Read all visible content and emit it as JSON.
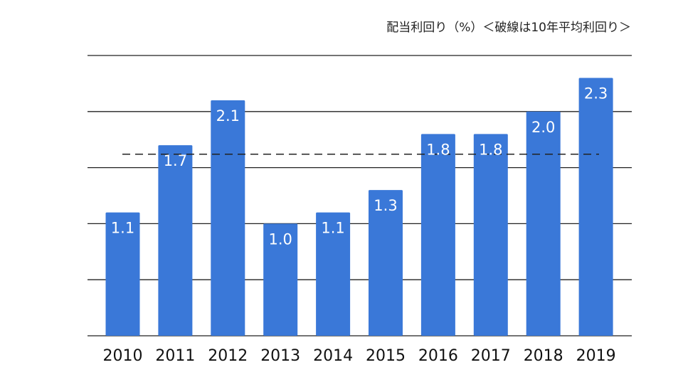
{
  "chart_data": {
    "type": "bar",
    "title": "配当利回り（%）＜破線は10年平均利回り＞",
    "xlabel": "",
    "ylabel": "",
    "categories": [
      "2010",
      "2011",
      "2012",
      "2013",
      "2014",
      "2015",
      "2016",
      "2017",
      "2018",
      "2019"
    ],
    "values": [
      1.1,
      1.7,
      2.1,
      1.0,
      1.1,
      1.3,
      1.8,
      1.8,
      2.0,
      2.3
    ],
    "value_labels": [
      "1.1",
      "1.7",
      "2.1",
      "1.0",
      "1.1",
      "1.3",
      "1.8",
      "1.8",
      "2.0",
      "2.3"
    ],
    "ylim": [
      0,
      2.5
    ],
    "gridlines": [
      0,
      0.5,
      1.0,
      1.5,
      2.0,
      2.5
    ],
    "average_line": 1.62,
    "y_tick_labels_shown": false,
    "grid": true,
    "legend": "none",
    "colors": {
      "bar": "#3a78d8",
      "label": "#ffffff",
      "grid": "#222222",
      "average": "#222222"
    }
  }
}
